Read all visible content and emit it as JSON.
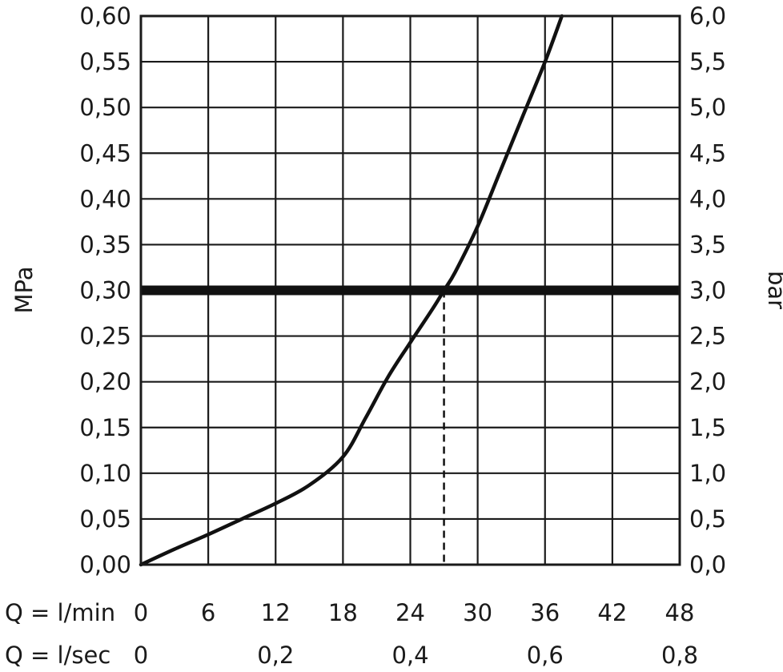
{
  "chart_data": {
    "type": "line",
    "x_unit_primary": "Q = l/min",
    "x_unit_secondary": "Q = l/sec",
    "x_ticks_primary": [
      "0",
      "6",
      "12",
      "18",
      "24",
      "30",
      "36",
      "42",
      "48"
    ],
    "x_ticks_secondary": [
      "0",
      "0,2",
      "0,4",
      "0,6",
      "0,8"
    ],
    "xlim": [
      0,
      48
    ],
    "y_label_left": "MPa",
    "y_label_right": "bar",
    "y_ticks_left": [
      "0,00",
      "0,05",
      "0,10",
      "0,15",
      "0,20",
      "0,25",
      "0,30",
      "0,35",
      "0,40",
      "0,45",
      "0,50",
      "0,55",
      "0,60"
    ],
    "y_ticks_right": [
      "0,0",
      "0,5",
      "1,0",
      "1,5",
      "2,0",
      "2,5",
      "3,0",
      "3,5",
      "4,0",
      "4,5",
      "5,0",
      "5,5",
      "6,0"
    ],
    "ylim": [
      0,
      0.6
    ],
    "grid": true,
    "series": [
      {
        "x": [
          0,
          3,
          6,
          9,
          12,
          15,
          18,
          20,
          22,
          24,
          26,
          27,
          28,
          30,
          32,
          34,
          36,
          37.5
        ],
        "y": [
          0,
          0.017,
          0.033,
          0.05,
          0.067,
          0.087,
          0.118,
          0.16,
          0.205,
          0.243,
          0.28,
          0.3,
          0.32,
          0.37,
          0.43,
          0.49,
          0.55,
          0.6
        ]
      }
    ],
    "reference_line_y": 0.3,
    "drop_line_x": 27
  }
}
